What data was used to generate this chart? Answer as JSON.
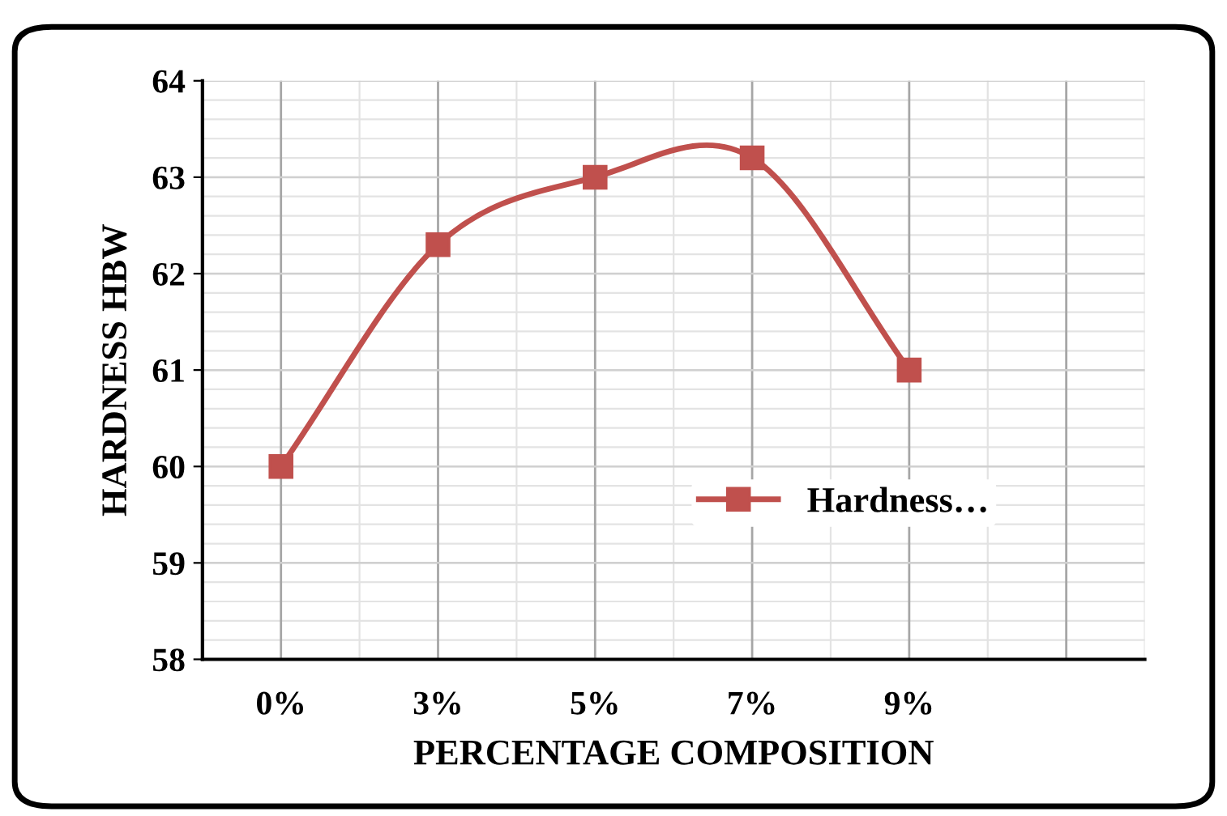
{
  "chart_data": {
    "type": "line",
    "xlabel": "PERCENTAGE COMPOSITION",
    "ylabel": "HARDNESS HBW",
    "categories": [
      "0%",
      "3%",
      "5%",
      "7%",
      "9%",
      null
    ],
    "series": [
      {
        "name": "Hardness…",
        "color": "#c0504d",
        "values": [
          60,
          62.3,
          63.0,
          63.2,
          61.0,
          null
        ]
      }
    ],
    "ylim": [
      58,
      64
    ],
    "yticks": [
      58,
      59,
      60,
      61,
      62,
      63,
      64
    ],
    "grid": true,
    "legend": "right",
    "marker": "square",
    "line_style": "solid"
  }
}
